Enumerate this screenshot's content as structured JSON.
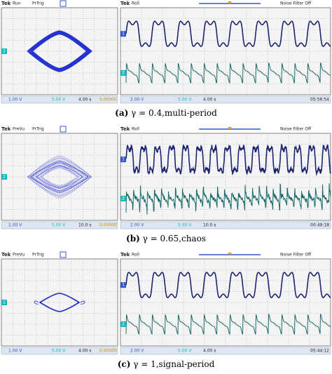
{
  "panels": [
    {
      "left": {
        "brand": "Tek",
        "mode": "Run",
        "trigger": "PrTrig",
        "ch2_marker": "2",
        "ch1_scale": "1.00 V",
        "ch2_scale": "5.00 V",
        "timebase": "4.00 s",
        "position": "0.00000"
      },
      "right": {
        "brand": "Tek",
        "mode": "Roll",
        "filter": "Noise Filter Off",
        "ch1_marker": "1",
        "ch2_marker": "2",
        "ch1_scale": "2.00 V",
        "ch2_scale": "5.00 V",
        "timebase": "4.00 s",
        "clock": "05:56:54"
      },
      "caption": {
        "label": "(a)",
        "text": "γ = 0.4,multi-period"
      }
    },
    {
      "left": {
        "brand": "Tek",
        "mode": "PreVu",
        "trigger": "PrTrig",
        "ch2_marker": "2",
        "ch1_scale": "1.00 V",
        "ch2_scale": "5.00 V",
        "timebase": "10.0 s",
        "position": "0.00000"
      },
      "right": {
        "brand": "Tek",
        "mode": "Roll",
        "filter": "Noise Filter Off",
        "ch1_marker": "1",
        "ch2_marker": "2",
        "ch1_scale": "2.00 V",
        "ch2_scale": "5.00 V",
        "timebase": "10.0 s",
        "clock": "00:49:18"
      },
      "caption": {
        "label": "(b)",
        "text": "γ = 0.65,chaos"
      }
    },
    {
      "left": {
        "brand": "Tek",
        "mode": "PreVu",
        "trigger": "PrTrig",
        "ch2_marker": "2",
        "ch1_scale": "1.00 V",
        "ch2_scale": "5.00 V",
        "timebase": "4.00 s",
        "position": "0.00000"
      },
      "right": {
        "brand": "Tek",
        "mode": "Roll",
        "filter": "Noise Filter Off",
        "ch1_marker": "1",
        "ch2_marker": "2",
        "ch1_scale": "2.00 V",
        "ch2_scale": "5.00 V",
        "timebase": "4.00 s",
        "clock": "05:44:12"
      },
      "caption": {
        "label": "(c)",
        "text": "γ = 1,signal-period"
      }
    }
  ]
}
